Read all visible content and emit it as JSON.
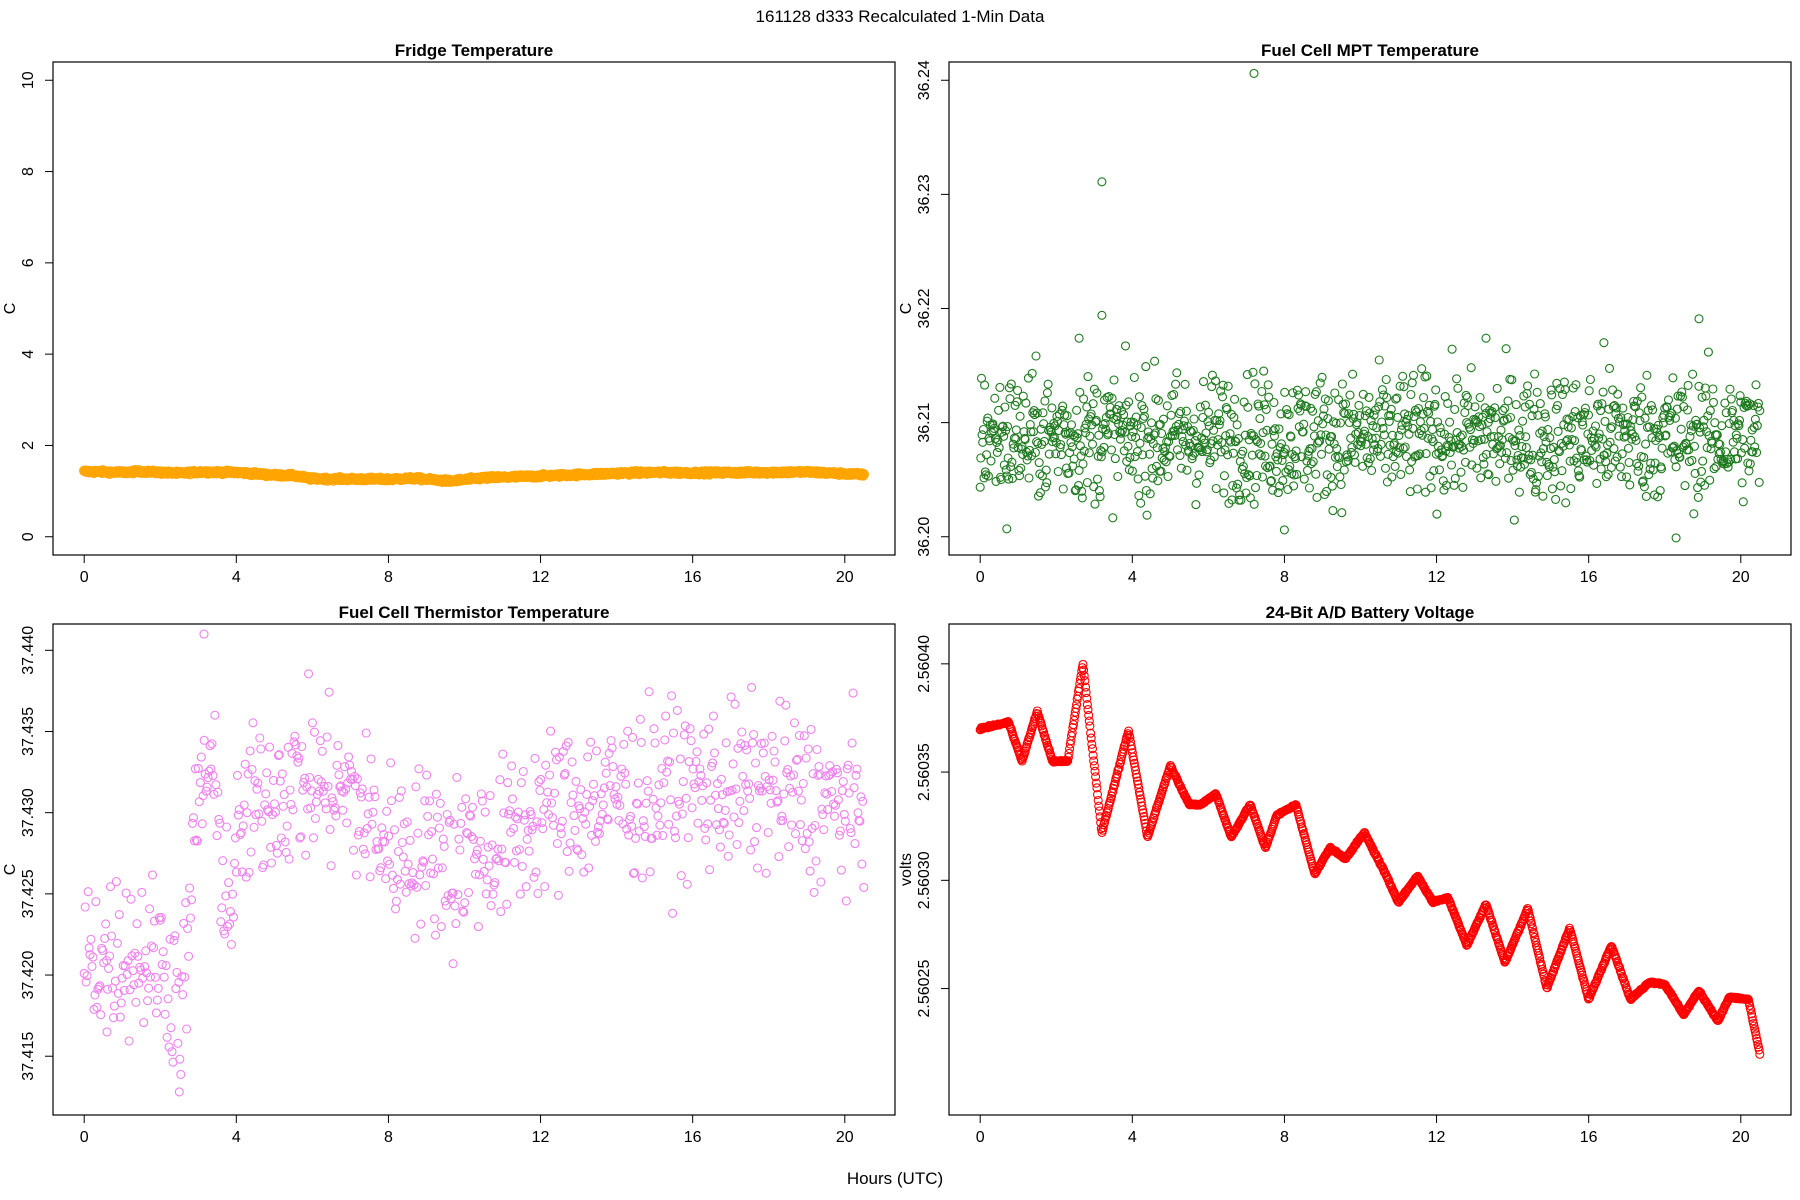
{
  "page_title": "161128   d333   Recalculated 1-Min Data",
  "shared_xlabel": "Hours (UTC)",
  "chart_data": [
    {
      "type": "scatter",
      "title": "Fridge Temperature",
      "xlabel": "",
      "ylabel": "C",
      "xlim": [
        0,
        20.5
      ],
      "ylim": [
        0,
        10
      ],
      "xticks": [
        0,
        4,
        8,
        12,
        16,
        20
      ],
      "yticks": [
        0,
        2,
        4,
        6,
        8,
        10
      ],
      "ytick_labels": [
        "0",
        "2",
        "4",
        "6",
        "8",
        "10"
      ],
      "color": "#FFA500",
      "marker": "open-circle",
      "generator": "profile",
      "profile": [
        [
          0,
          1.43
        ],
        [
          1,
          1.41
        ],
        [
          1.5,
          1.43
        ],
        [
          2.5,
          1.39
        ],
        [
          3,
          1.42
        ],
        [
          4,
          1.41
        ],
        [
          5,
          1.35
        ],
        [
          5.5,
          1.34
        ],
        [
          6,
          1.27
        ],
        [
          8,
          1.26
        ],
        [
          8.7,
          1.28
        ],
        [
          9.6,
          1.22
        ],
        [
          10.5,
          1.29
        ],
        [
          12,
          1.33
        ],
        [
          14,
          1.39
        ],
        [
          15,
          1.41
        ],
        [
          16,
          1.4
        ],
        [
          18,
          1.41
        ],
        [
          19,
          1.42
        ],
        [
          20.5,
          1.36
        ]
      ],
      "n_points": 1230,
      "noise": 0.015,
      "series_description": "near-constant, about 1.2-1.45 C"
    },
    {
      "type": "scatter",
      "title": "Fuel Cell MPT Temperature",
      "xlabel": "",
      "ylabel": "C",
      "xlim": [
        0,
        20.5
      ],
      "ylim": [
        36.2,
        36.24
      ],
      "xticks": [
        0,
        4,
        8,
        12,
        16,
        20
      ],
      "yticks": [
        36.2,
        36.21,
        36.22,
        36.23,
        36.24
      ],
      "ytick_labels": [
        "36.20",
        "36.21",
        "36.22",
        "36.23",
        "36.24"
      ],
      "color": "#1E7A1E",
      "marker": "open-circle",
      "generator": "noise",
      "center": 36.2088,
      "spread": 0.0027,
      "n_points": 1230,
      "outliers": [
        [
          7.2,
          36.2406
        ],
        [
          3.2,
          36.2311
        ],
        [
          3.2,
          36.2194
        ],
        [
          18.9,
          36.2191
        ],
        [
          2.6,
          36.2174
        ],
        [
          13.3,
          36.2174
        ],
        [
          16.4,
          36.217
        ],
        [
          8.0,
          36.2006
        ],
        [
          18.3,
          36.1999
        ],
        [
          0.7,
          36.2007
        ]
      ]
    },
    {
      "type": "scatter",
      "title": "Fuel Cell Thermistor Temperature",
      "xlabel": "",
      "ylabel": "C",
      "xlim": [
        0,
        20.5
      ],
      "ylim": [
        37.4125,
        37.4405
      ],
      "xticks": [
        0,
        4,
        8,
        12,
        16,
        20
      ],
      "yticks": [
        37.415,
        37.42,
        37.425,
        37.43,
        37.435,
        37.44
      ],
      "ytick_labels": [
        "37.415",
        "37.420",
        "37.425",
        "37.430",
        "37.435",
        "37.440"
      ],
      "color": "#EE82EE",
      "marker": "open-circle",
      "generator": "profile-noise",
      "profile": [
        [
          0,
          37.421
        ],
        [
          1,
          37.4215
        ],
        [
          2,
          37.421
        ],
        [
          2.6,
          37.418
        ],
        [
          3.0,
          37.431
        ],
        [
          3.3,
          37.433
        ],
        [
          3.8,
          37.424
        ],
        [
          4.2,
          37.4295
        ],
        [
          5,
          37.4315
        ],
        [
          6,
          37.432
        ],
        [
          7,
          37.431
        ],
        [
          8,
          37.428
        ],
        [
          9.5,
          37.4275
        ],
        [
          11,
          37.428
        ],
        [
          12,
          37.43
        ],
        [
          14,
          37.431
        ],
        [
          16,
          37.4315
        ],
        [
          18,
          37.4315
        ],
        [
          20.5,
          37.43
        ]
      ],
      "n_points": 800,
      "spread": 0.0025,
      "outliers": [
        [
          3.15,
          37.441
        ],
        [
          2.5,
          37.4128
        ],
        [
          9.7,
          37.4207
        ],
        [
          0.6,
          37.4165
        ]
      ]
    },
    {
      "type": "scatter",
      "title": "24-Bit A/D Battery Voltage",
      "xlabel": "",
      "ylabel": "volts",
      "xlim": [
        0,
        20.5
      ],
      "ylim": [
        2.5602,
        2.56041
      ],
      "xticks": [
        0,
        4,
        8,
        12,
        16,
        20
      ],
      "yticks": [
        2.56025,
        2.5603,
        2.56035,
        2.5604
      ],
      "ytick_labels": [
        "2.56025",
        "2.56030",
        "2.56035",
        "2.56040"
      ],
      "color": "#FF0000",
      "marker": "open-circle",
      "generator": "profile",
      "profile": [
        [
          0,
          2.56037
        ],
        [
          0.5,
          2.560372
        ],
        [
          0.75,
          2.560373
        ],
        [
          1.1,
          2.560355
        ],
        [
          1.5,
          2.560378
        ],
        [
          1.9,
          2.560355
        ],
        [
          2.3,
          2.560355
        ],
        [
          2.7,
          2.5604
        ],
        [
          3.2,
          2.560322
        ],
        [
          3.9,
          2.560369
        ],
        [
          4.4,
          2.56032
        ],
        [
          5,
          2.560353
        ],
        [
          5.5,
          2.560335
        ],
        [
          5.8,
          2.560335
        ],
        [
          6.2,
          2.56034
        ],
        [
          6.6,
          2.56032
        ],
        [
          7.1,
          2.560335
        ],
        [
          7.5,
          2.560315
        ],
        [
          7.8,
          2.56033
        ],
        [
          8.3,
          2.560335
        ],
        [
          8.8,
          2.560303
        ],
        [
          9.2,
          2.560315
        ],
        [
          9.6,
          2.56031
        ],
        [
          10.1,
          2.560322
        ],
        [
          10.6,
          2.560305
        ],
        [
          11.0,
          2.56029
        ],
        [
          11.5,
          2.560302
        ],
        [
          11.9,
          2.56029
        ],
        [
          12.3,
          2.560292
        ],
        [
          12.8,
          2.56027
        ],
        [
          13.3,
          2.560289
        ],
        [
          13.8,
          2.560262
        ],
        [
          14.4,
          2.560287
        ],
        [
          14.9,
          2.56025
        ],
        [
          15.5,
          2.560278
        ],
        [
          16.0,
          2.560245
        ],
        [
          16.6,
          2.56027
        ],
        [
          17.1,
          2.560245
        ],
        [
          17.6,
          2.560253
        ],
        [
          18.0,
          2.560252
        ],
        [
          18.5,
          2.560238
        ],
        [
          18.9,
          2.560249
        ],
        [
          19.4,
          2.560235
        ],
        [
          19.7,
          2.560246
        ],
        [
          20.2,
          2.560245
        ],
        [
          20.5,
          2.56022
        ]
      ],
      "n_points": 1230,
      "noise": 2e-07
    }
  ]
}
